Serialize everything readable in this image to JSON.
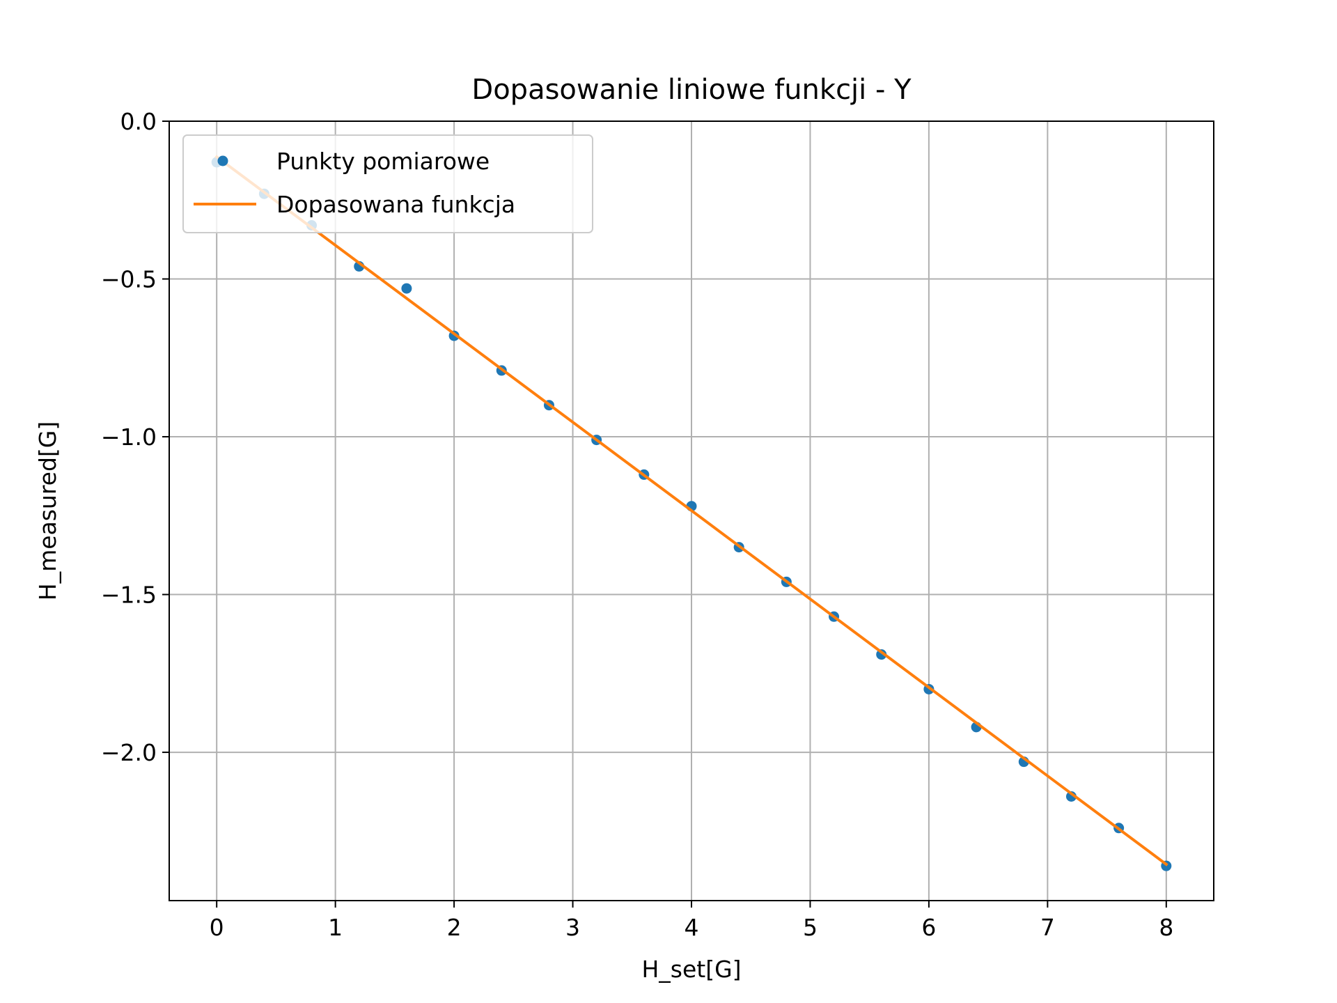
{
  "chart_data": {
    "type": "scatter",
    "title": "Dopasowanie liniowe funkcji - Y",
    "xlabel": "H_set[G]",
    "ylabel": "H_measured[G]",
    "xlim": [
      -0.4,
      8.4
    ],
    "ylim": [
      -2.47,
      0.0
    ],
    "xticks": [
      0,
      1,
      2,
      3,
      4,
      5,
      6,
      7,
      8
    ],
    "xtick_labels": [
      "0",
      "1",
      "2",
      "3",
      "4",
      "5",
      "6",
      "7",
      "8"
    ],
    "yticks": [
      0.0,
      -0.5,
      -1.0,
      -1.5,
      -2.0
    ],
    "ytick_labels": [
      "0.0",
      "−0.5",
      "−1.0",
      "−1.5",
      "−2.0"
    ],
    "grid": true,
    "legend_position": "upper-left",
    "series": [
      {
        "name": "Punkty pomiarowe",
        "kind": "scatter",
        "color": "#1f77b4",
        "x": [
          0.0,
          0.4,
          0.8,
          1.2,
          1.6,
          2.0,
          2.4,
          2.8,
          3.2,
          3.6,
          4.0,
          4.4,
          4.8,
          5.2,
          5.6,
          6.0,
          6.4,
          6.8,
          7.2,
          7.6,
          8.0
        ],
        "y": [
          -0.13,
          -0.23,
          -0.33,
          -0.46,
          -0.53,
          -0.68,
          -0.79,
          -0.9,
          -1.01,
          -1.12,
          -1.22,
          -1.35,
          -1.46,
          -1.57,
          -1.69,
          -1.8,
          -1.92,
          -2.03,
          -2.14,
          -2.24,
          -2.36
        ]
      },
      {
        "name": "Dopasowana funkcja",
        "kind": "line",
        "color": "#ff7f0e",
        "x": [
          0.0,
          8.0
        ],
        "y": [
          -0.113,
          -2.355
        ]
      }
    ]
  }
}
